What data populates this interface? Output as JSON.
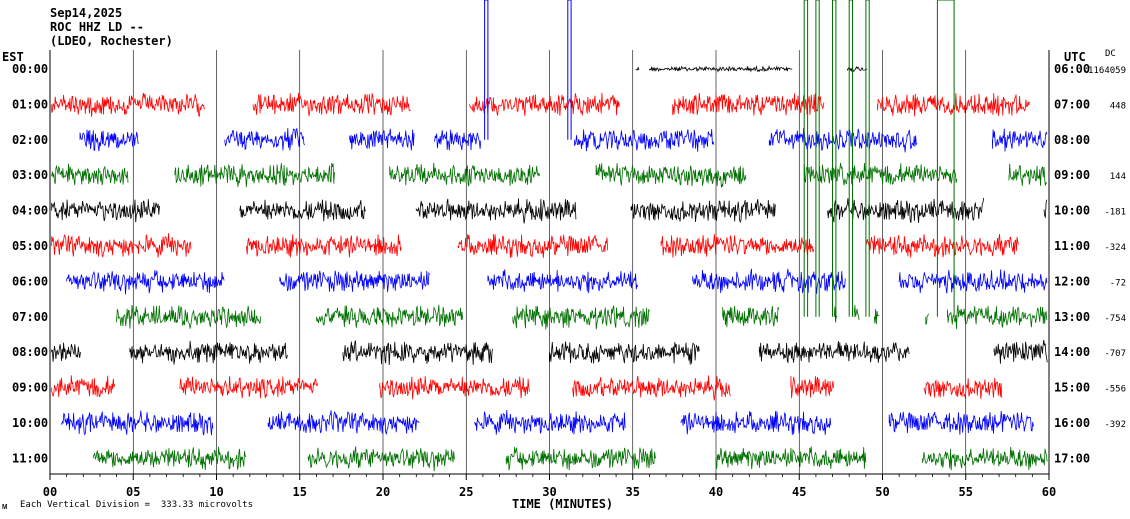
{
  "header": {
    "date": "Sep14,2025",
    "station": "ROC HHZ LD --",
    "network": "(LDEO, Rochester)"
  },
  "axis": {
    "left_zone": "EST",
    "right_zone": "UTC",
    "dc_header": "DC",
    "xlabel": "TIME (MINUTES)",
    "scale_note": "Each Vertical Division =  333.33 microvolts",
    "corner_mark": "ᴍ"
  },
  "colors": {
    "black": "#000000",
    "red": "#ff0000",
    "blue": "#0000ff",
    "green": "#007000",
    "grid": "#000000"
  },
  "chart_data": {
    "type": "line",
    "title": "Sep14,2025",
    "xlabel": "TIME (MINUTES)",
    "xlim": [
      0,
      60
    ],
    "x_ticks": [
      "00",
      "05",
      "10",
      "15",
      "20",
      "25",
      "30",
      "35",
      "40",
      "45",
      "50",
      "55",
      "60"
    ],
    "rows": [
      {
        "est": "00:00",
        "utc": "06:00",
        "dc": "-1164059",
        "color": "black",
        "segments": [
          [
            35.2,
            35.4
          ],
          [
            36.0,
            44.6
          ],
          [
            47.9,
            49.1
          ]
        ]
      },
      {
        "est": "01:00",
        "utc": "07:00",
        "dc": "448",
        "color": "red",
        "segments": [
          [
            0.1,
            9.3
          ],
          [
            12.2,
            21.7
          ],
          [
            25.2,
            34.2
          ],
          [
            37.4,
            46.5
          ],
          [
            49.7,
            58.9
          ]
        ]
      },
      {
        "est": "02:00",
        "utc": "08:00",
        "dc": "",
        "color": "blue",
        "segments": [
          [
            1.8,
            5.3
          ],
          [
            10.5,
            15.3
          ],
          [
            18.0,
            21.9
          ],
          [
            23.1,
            25.9
          ],
          [
            31.5,
            39.9
          ],
          [
            43.2,
            52.1
          ],
          [
            56.6,
            59.9
          ]
        ]
      },
      {
        "est": "03:00",
        "utc": "09:00",
        "dc": "144",
        "color": "green",
        "segments": [
          [
            0.1,
            4.7
          ],
          [
            7.5,
            17.1
          ],
          [
            20.4,
            29.4
          ],
          [
            32.8,
            41.8
          ],
          [
            45.3,
            54.5
          ],
          [
            57.6,
            59.9
          ]
        ]
      },
      {
        "est": "04:00",
        "utc": "10:00",
        "dc": "-181",
        "color": "black",
        "segments": [
          [
            0.1,
            6.6
          ],
          [
            11.4,
            19.0
          ],
          [
            22.0,
            31.6
          ],
          [
            34.9,
            43.6
          ],
          [
            46.7,
            56.1
          ],
          [
            59.7,
            59.9
          ]
        ]
      },
      {
        "est": "05:00",
        "utc": "11:00",
        "dc": "-324",
        "color": "red",
        "segments": [
          [
            0.1,
            8.5
          ],
          [
            11.8,
            21.1
          ],
          [
            24.5,
            33.5
          ],
          [
            36.7,
            45.9
          ],
          [
            49.0,
            58.2
          ]
        ]
      },
      {
        "est": "06:00",
        "utc": "12:00",
        "dc": "-72",
        "color": "blue",
        "segments": [
          [
            1.0,
            10.5
          ],
          [
            13.8,
            22.8
          ],
          [
            26.3,
            35.3
          ],
          [
            38.6,
            47.8
          ],
          [
            51.0,
            59.9
          ]
        ]
      },
      {
        "est": "07:00",
        "utc": "13:00",
        "dc": "-754",
        "color": "green",
        "segments": [
          [
            4.0,
            12.7
          ],
          [
            16.0,
            24.8
          ],
          [
            27.8,
            36.0
          ],
          [
            40.4,
            43.8
          ],
          [
            47.1,
            47.3
          ],
          [
            48.3,
            48.6
          ],
          [
            49.5,
            49.8
          ],
          [
            52.6,
            52.8
          ],
          [
            53.9,
            59.9
          ]
        ]
      },
      {
        "est": "08:00",
        "utc": "14:00",
        "dc": "-707",
        "color": "black",
        "segments": [
          [
            0.1,
            1.9
          ],
          [
            4.8,
            14.3
          ],
          [
            17.6,
            26.6
          ],
          [
            30.0,
            39.0
          ],
          [
            42.6,
            51.6
          ],
          [
            56.7,
            59.9
          ]
        ]
      },
      {
        "est": "09:00",
        "utc": "15:00",
        "dc": "-556",
        "color": "red",
        "segments": [
          [
            0.1,
            3.9
          ],
          [
            7.8,
            16.1
          ],
          [
            19.8,
            28.8
          ],
          [
            31.4,
            40.9
          ],
          [
            44.5,
            47.1
          ],
          [
            52.5,
            57.2
          ]
        ]
      },
      {
        "est": "10:00",
        "utc": "16:00",
        "dc": "-392",
        "color": "blue",
        "segments": [
          [
            0.7,
            9.8
          ],
          [
            13.1,
            22.2
          ],
          [
            25.5,
            34.6
          ],
          [
            37.9,
            46.9
          ],
          [
            50.4,
            59.1
          ]
        ]
      },
      {
        "est": "11:00",
        "utc": "17:00",
        "dc": "",
        "color": "green",
        "segments": [
          [
            2.6,
            11.8
          ],
          [
            15.5,
            24.3
          ],
          [
            27.4,
            36.4
          ],
          [
            40.0,
            49.0
          ],
          [
            52.4,
            59.9
          ]
        ]
      }
    ],
    "spikes": [
      {
        "color": "blue",
        "x_start": 26.1,
        "x_end": 26.3,
        "to_row": 2
      },
      {
        "color": "blue",
        "x_start": 31.1,
        "x_end": 31.3,
        "to_row": 2
      },
      {
        "color": "green",
        "x_start": 45.3,
        "x_end": 45.5,
        "to_row": 7
      },
      {
        "color": "green",
        "x_start": 46.0,
        "x_end": 46.2,
        "to_row": 7
      },
      {
        "color": "green",
        "x_start": 47.0,
        "x_end": 47.2,
        "to_row": 7
      },
      {
        "color": "green",
        "x_start": 48.0,
        "x_end": 48.2,
        "to_row": 7
      },
      {
        "color": "green",
        "x_start": 49.0,
        "x_end": 49.2,
        "to_row": 7
      },
      {
        "color": "green",
        "x_start": 53.3,
        "x_end": 54.3,
        "to_row": 7
      }
    ]
  }
}
